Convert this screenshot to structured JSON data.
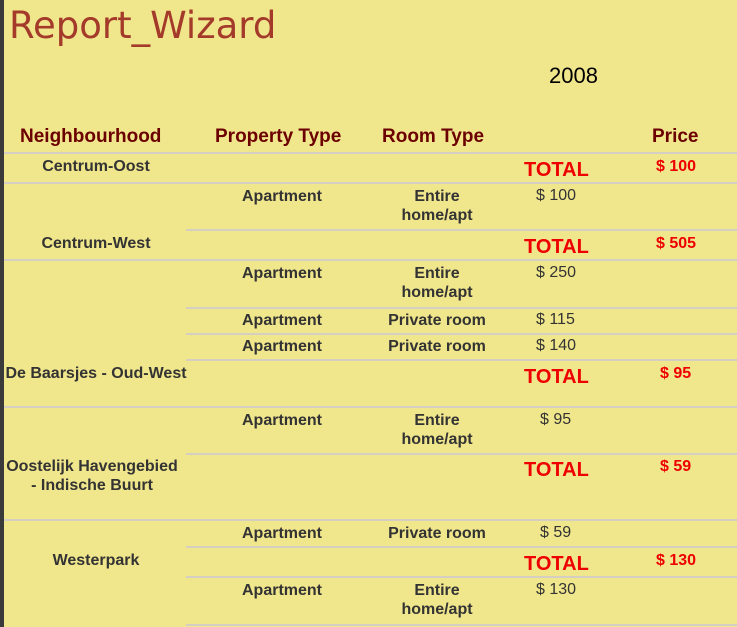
{
  "report": {
    "title": "Report_Wizard",
    "year": "2008"
  },
  "columns": {
    "neighbourhood": "Neighbourhood",
    "property_type": "Property Type",
    "room_type": "Room Type",
    "price": "Price"
  },
  "total_label": "TOTAL",
  "groups": [
    {
      "neighbourhood": "Centrum-Oost",
      "total": "$ 100",
      "rows": [
        {
          "property_type": "Apartment",
          "room_type": "Entire home/apt",
          "price": "$ 100"
        }
      ]
    },
    {
      "neighbourhood": "Centrum-West",
      "total": "$ 505",
      "rows": [
        {
          "property_type": "Apartment",
          "room_type": "Entire home/apt",
          "price": "$ 250"
        },
        {
          "property_type": "Apartment",
          "room_type": "Private room",
          "price": "$ 115"
        },
        {
          "property_type": "Apartment",
          "room_type": "Private room",
          "price": "$ 140"
        }
      ]
    },
    {
      "neighbourhood": "De Baarsjes - Oud-West",
      "total": "$ 95",
      "rows": [
        {
          "property_type": "Apartment",
          "room_type": "Entire home/apt",
          "price": "$ 95"
        }
      ]
    },
    {
      "neighbourhood": "Oostelijk Havengebied - Indische Buurt",
      "total": "$ 59",
      "rows": [
        {
          "property_type": "Apartment",
          "room_type": "Private room",
          "price": "$ 59"
        }
      ]
    },
    {
      "neighbourhood": "Westerpark",
      "total": "$ 130",
      "rows": [
        {
          "property_type": "Apartment",
          "room_type": "Entire home/apt",
          "price": "$ 130"
        }
      ]
    }
  ]
}
